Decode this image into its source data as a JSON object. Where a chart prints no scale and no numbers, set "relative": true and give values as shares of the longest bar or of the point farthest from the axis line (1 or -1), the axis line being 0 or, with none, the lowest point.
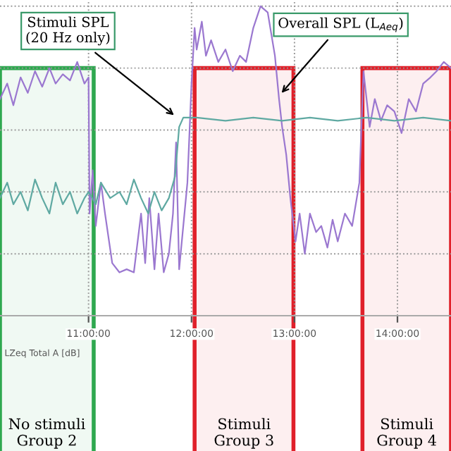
{
  "chart_data": {
    "type": "line",
    "relative": true,
    "xlim": [
      10.14,
      14.52
    ],
    "xticks": [
      {
        "value": 11,
        "label": "11:00:00"
      },
      {
        "value": 12,
        "label": "12:00:00"
      },
      {
        "value": 13,
        "label": "13:00:00"
      },
      {
        "value": 14,
        "label": "14:00:00"
      }
    ],
    "grid": true,
    "marker": "none",
    "line_style": "solid",
    "series": [
      {
        "color": "#9b78d0",
        "x": [
          10.14,
          10.21,
          10.27,
          10.34,
          10.41,
          10.48,
          10.55,
          10.62,
          10.68,
          10.75,
          10.82,
          10.89,
          10.96,
          11.0,
          11.01,
          11.04,
          11.07,
          11.12,
          11.16,
          11.23,
          11.3,
          11.37,
          11.44,
          11.51,
          11.55,
          11.59,
          11.64,
          11.68,
          11.73,
          11.78,
          11.82,
          11.85,
          11.88,
          11.92,
          11.96,
          12.0,
          12.03,
          12.05,
          12.1,
          12.14,
          12.19,
          12.26,
          12.33,
          12.4,
          12.47,
          12.53,
          12.6,
          12.67,
          12.74,
          12.81,
          12.85,
          12.88,
          12.92,
          12.96,
          13.01,
          13.05,
          13.1,
          13.15,
          13.21,
          13.26,
          13.32,
          13.37,
          13.42,
          13.49,
          13.56,
          13.63,
          13.67,
          13.73,
          13.78,
          13.84,
          13.9,
          13.97,
          14.04,
          14.11,
          14.18,
          14.25,
          14.32,
          14.38,
          14.45,
          14.52
        ],
        "values": [
          0.7,
          0.75,
          0.68,
          0.77,
          0.72,
          0.79,
          0.74,
          0.8,
          0.75,
          0.78,
          0.76,
          0.82,
          0.75,
          0.77,
          0.33,
          0.47,
          0.29,
          0.43,
          0.33,
          0.17,
          0.14,
          0.15,
          0.14,
          0.33,
          0.17,
          0.38,
          0.15,
          0.33,
          0.14,
          0.2,
          0.33,
          0.56,
          0.15,
          0.29,
          0.43,
          0.75,
          0.93,
          0.86,
          0.95,
          0.84,
          0.89,
          0.82,
          0.86,
          0.79,
          0.84,
          0.82,
          0.93,
          1.0,
          0.98,
          0.84,
          0.7,
          0.61,
          0.52,
          0.38,
          0.24,
          0.33,
          0.2,
          0.33,
          0.27,
          0.29,
          0.22,
          0.31,
          0.24,
          0.33,
          0.29,
          0.43,
          0.79,
          0.61,
          0.7,
          0.63,
          0.68,
          0.66,
          0.59,
          0.7,
          0.66,
          0.75,
          0.77,
          0.79,
          0.82,
          0.8
        ]
      },
      {
        "color": "#5fa9a2",
        "x": [
          10.14,
          10.21,
          10.27,
          10.34,
          10.41,
          10.48,
          10.55,
          10.62,
          10.68,
          10.75,
          10.82,
          10.89,
          10.96,
          11.0,
          11.07,
          11.12,
          11.21,
          11.3,
          11.37,
          11.44,
          11.51,
          11.58,
          11.64,
          11.71,
          11.78,
          11.84,
          11.88,
          11.92,
          12.05,
          12.33,
          12.6,
          12.88,
          13.15,
          13.42,
          13.7,
          13.97,
          14.25,
          14.52
        ],
        "values": [
          0.38,
          0.43,
          0.36,
          0.4,
          0.34,
          0.44,
          0.38,
          0.33,
          0.43,
          0.36,
          0.4,
          0.33,
          0.38,
          0.4,
          0.36,
          0.43,
          0.38,
          0.4,
          0.36,
          0.44,
          0.38,
          0.33,
          0.4,
          0.34,
          0.38,
          0.45,
          0.61,
          0.64,
          0.64,
          0.63,
          0.64,
          0.63,
          0.64,
          0.63,
          0.64,
          0.63,
          0.64,
          0.63
        ]
      }
    ],
    "annotations": [
      {
        "text": "Stimuli SPL\n(20 Hz only)",
        "x": 11.86,
        "y": 0.64
      },
      {
        "text": "Overall SPL (L$_{Aeq}$)",
        "x": 12.85,
        "y": 0.71
      },
      "LZeq Total A [dB]"
    ],
    "bands": [
      {
        "axis": "x",
        "from": 10.14,
        "to": 11.05,
        "label": "No stimuli\nGroup 2",
        "color": "#2ea84f"
      },
      {
        "axis": "x",
        "from": 12.03,
        "to": 12.99,
        "label": "Stimuli\nGroup 3",
        "color": "#e0202a"
      },
      {
        "axis": "x",
        "from": 13.66,
        "to": 14.52,
        "label": "Stimuli\nGroup 4",
        "color": "#e0202a"
      }
    ]
  }
}
